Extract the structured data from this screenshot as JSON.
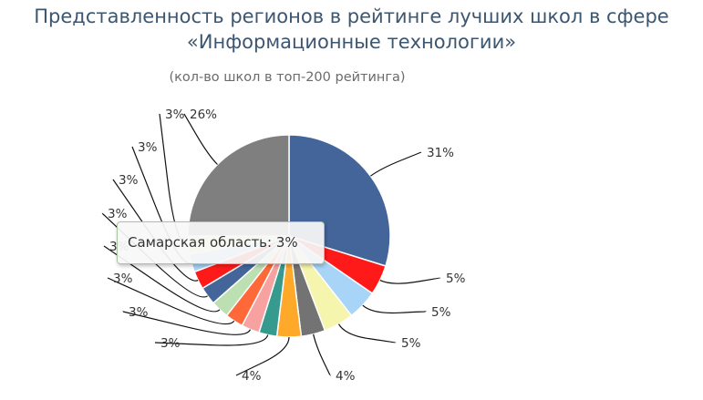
{
  "chart_data": {
    "type": "pie",
    "title_line1": "Представленность регионов в рейтинге лучших школ в сфере",
    "title_line2": "«Информационные технологии»",
    "subtitle": "(кол-во школ в топ-200 рейтинга)",
    "slices": [
      {
        "label": "31%",
        "value": 31,
        "color": "#44659a"
      },
      {
        "label": "5%",
        "value": 5,
        "color": "#ff1a1a"
      },
      {
        "label": "5%",
        "value": 5,
        "color": "#a8d4f7"
      },
      {
        "label": "5%",
        "value": 5,
        "color": "#f5f5ad"
      },
      {
        "label": "4%",
        "value": 4,
        "color": "#737373"
      },
      {
        "label": "4%",
        "value": 4,
        "color": "#ffa92b"
      },
      {
        "label": "3%",
        "value": 3,
        "color": "#379a8f"
      },
      {
        "label": "3%",
        "value": 3,
        "color": "#f7a1a1"
      },
      {
        "label": "3%",
        "value": 3,
        "color": "#ff6839"
      },
      {
        "label": "3%",
        "value": 3,
        "color": "#bde0b3"
      },
      {
        "label": "3%",
        "value": 3,
        "color": "#44659a"
      },
      {
        "label": "3%",
        "value": 3,
        "color": "#ff1a1a"
      },
      {
        "label": "3%",
        "value": 3,
        "color": "#a8d4f7"
      },
      {
        "label": "3%",
        "value": 3,
        "color": "#f5f5ad"
      },
      {
        "label": "26%",
        "value": 26,
        "color": "#7f7f7f"
      }
    ],
    "tooltip": "Самарская область: 3%"
  }
}
